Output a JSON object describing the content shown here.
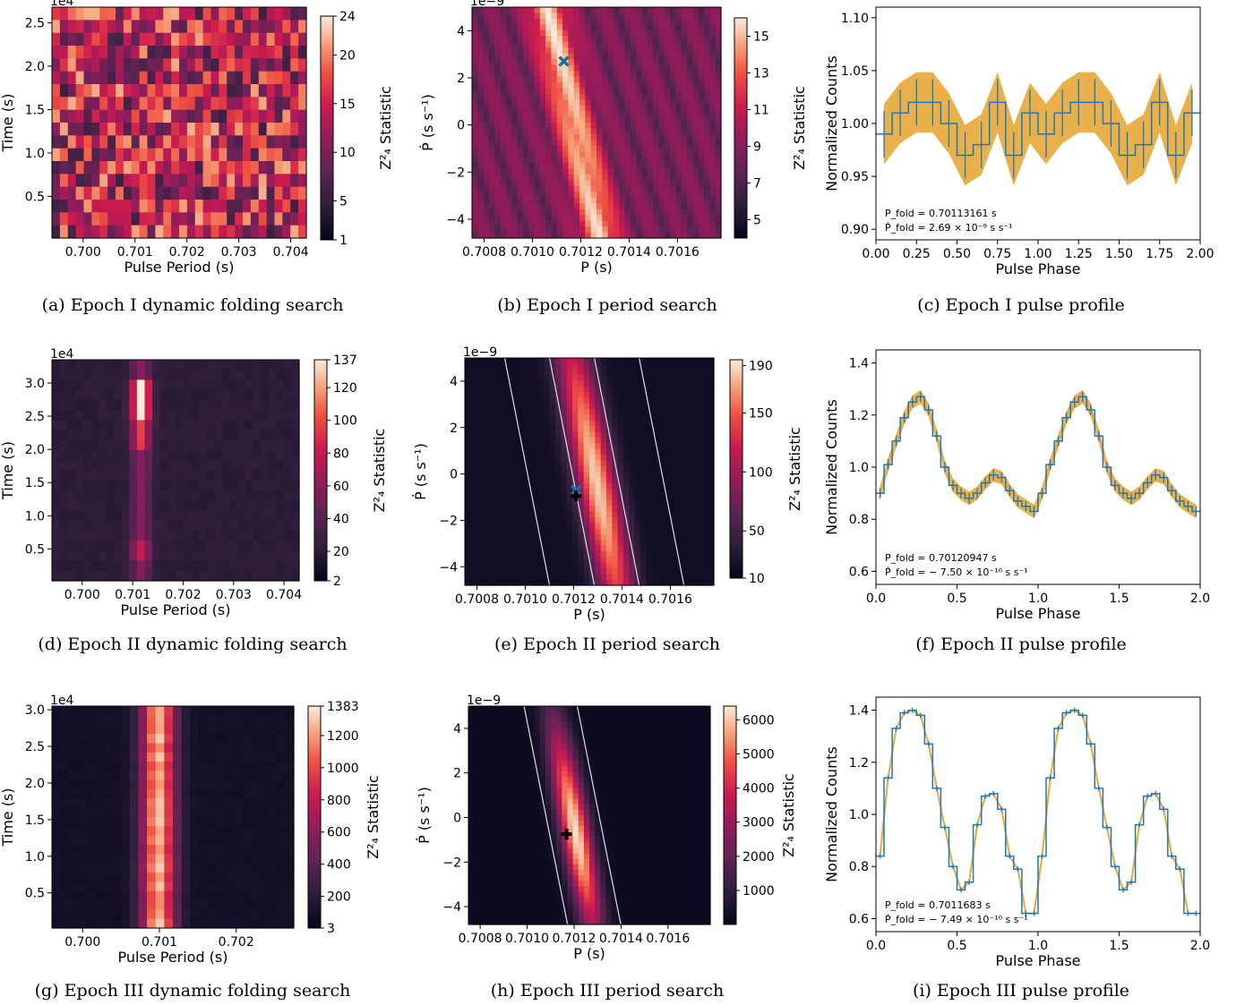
{
  "colors": {
    "profile_line": "#1f77b4",
    "profile_band": "#e8a937",
    "best_marker": "#1f6fa0",
    "cross_marker": "#000000"
  },
  "captions": [
    "(a) Epoch I dynamic folding search",
    "(b) Epoch I period search",
    "(c) Epoch I pulse profile",
    "(d) Epoch II dynamic folding search",
    "(e) Epoch II period search",
    "(f) Epoch II pulse profile",
    "(g) Epoch III dynamic folding search",
    "(h) Epoch III period search",
    "(i) Epoch III pulse profile"
  ],
  "chart_data": [
    {
      "id": "a",
      "type": "heatmap",
      "xlabel": "Pulse Period (s)",
      "ylabel": "Time (s)",
      "yscale_label": "1e4",
      "xlim": [
        0.6994,
        0.7043
      ],
      "ylim": [
        0.02,
        2.68
      ],
      "xticks": [
        "0.700",
        "0.701",
        "0.702",
        "0.703",
        "0.704"
      ],
      "yticks": [
        "0.5",
        "1.0",
        "1.5",
        "2.0",
        "2.5"
      ],
      "colorbar": {
        "label": "Z²₄ Statistic",
        "min": 1,
        "max": 24,
        "ticks": [
          "1",
          "5",
          "10",
          "15",
          "20",
          "24"
        ]
      }
    },
    {
      "id": "b",
      "type": "heatmap",
      "xlabel": "P (s)",
      "ylabel": "Ṗ (s s⁻¹)",
      "yscale_label": "1e−9",
      "xlim": [
        0.70075,
        0.70178
      ],
      "ylim": [
        -4.8,
        5
      ],
      "xticks": [
        "0.7008",
        "0.7010",
        "0.7012",
        "0.7014",
        "0.7016"
      ],
      "yticks": [
        "−4",
        "−2",
        "0",
        "2",
        "4"
      ],
      "colorbar": {
        "label": "Z²₄ Statistic",
        "min": 4,
        "max": 16,
        "ticks": [
          "5",
          "7",
          "9",
          "11",
          "13",
          "15"
        ]
      },
      "markers": [
        {
          "kind": "x",
          "P": 0.70113,
          "Pdot": 2.7
        }
      ]
    },
    {
      "id": "c",
      "type": "line",
      "xlabel": "Pulse Phase",
      "ylabel": "Normalized Counts",
      "xlim": [
        0,
        2
      ],
      "ylim": [
        0.89,
        1.11
      ],
      "xticks": [
        "0.00",
        "0.25",
        "0.50",
        "0.75",
        "1.00",
        "1.25",
        "1.50",
        "1.75",
        "2.00"
      ],
      "yticks": [
        "0.90",
        "0.95",
        "1.00",
        "1.05",
        "1.10"
      ],
      "annotation": [
        "P_fold = 0.70113161 s",
        "Ṗ_fold = 2.69 × 10⁻⁹ s s⁻¹"
      ],
      "phase": [
        0.05,
        0.15,
        0.25,
        0.35,
        0.45,
        0.55,
        0.65,
        0.75,
        0.85,
        0.95
      ],
      "values": [
        0.99,
        1.01,
        1.02,
        1.02,
        1.0,
        0.97,
        0.98,
        1.02,
        0.97,
        1.01
      ],
      "errors": [
        0.022,
        0.022,
        0.022,
        0.022,
        0.022,
        0.022,
        0.022,
        0.022,
        0.022,
        0.022
      ]
    },
    {
      "id": "d",
      "type": "heatmap",
      "xlabel": "Pulse Period (s)",
      "ylabel": "Time (s)",
      "yscale_label": "1e4",
      "xlim": [
        0.6994,
        0.7043
      ],
      "ylim": [
        0.02,
        3.35
      ],
      "xticks": [
        "0.700",
        "0.701",
        "0.702",
        "0.703",
        "0.704"
      ],
      "yticks": [
        "0.5",
        "1.0",
        "1.5",
        "2.0",
        "2.5",
        "3.0"
      ],
      "colorbar": {
        "label": "Z²₄ Statistic",
        "min": 2,
        "max": 137,
        "ticks": [
          "2",
          "20",
          "40",
          "60",
          "80",
          "100",
          "120",
          "137"
        ]
      }
    },
    {
      "id": "e",
      "type": "heatmap",
      "xlabel": "P (s)",
      "ylabel": "Ṗ (s s⁻¹)",
      "yscale_label": "1e−9",
      "xlim": [
        0.70075,
        0.70178
      ],
      "ylim": [
        -4.8,
        5
      ],
      "xticks": [
        "0.7008",
        "0.7010",
        "0.7012",
        "0.7014",
        "0.7016"
      ],
      "yticks": [
        "−4",
        "−2",
        "0",
        "2",
        "4"
      ],
      "colorbar": {
        "label": "Z²₄ Statistic",
        "min": 10,
        "max": 195,
        "ticks": [
          "10",
          "50",
          "100",
          "150",
          "190"
        ]
      },
      "markers": [
        {
          "kind": "x",
          "P": 0.70121,
          "Pdot": -0.7
        },
        {
          "kind": "plus",
          "P": 0.70121,
          "Pdot": -0.95
        }
      ]
    },
    {
      "id": "f",
      "type": "line",
      "xlabel": "Pulse Phase",
      "ylabel": "Normalized Counts",
      "xlim": [
        0,
        2
      ],
      "ylim": [
        0.55,
        1.45
      ],
      "xticks": [
        "0.0",
        "0.5",
        "1.0",
        "1.5",
        "2.0"
      ],
      "yticks": [
        "0.6",
        "0.8",
        "1.0",
        "1.2",
        "1.4"
      ],
      "annotation": [
        "P_fold = 0.70120947 s",
        "Ṗ_fold = − 7.50 × 10⁻¹⁰ s s⁻¹"
      ],
      "phase": [
        0.025,
        0.075,
        0.125,
        0.175,
        0.225,
        0.275,
        0.325,
        0.375,
        0.425,
        0.475,
        0.525,
        0.575,
        0.625,
        0.675,
        0.725,
        0.775,
        0.825,
        0.875,
        0.925,
        0.975
      ],
      "values": [
        0.9,
        1.01,
        1.1,
        1.19,
        1.25,
        1.27,
        1.22,
        1.12,
        1.0,
        0.93,
        0.9,
        0.88,
        0.9,
        0.94,
        0.97,
        0.96,
        0.91,
        0.87,
        0.85,
        0.83
      ],
      "errors": [
        0.02,
        0.02,
        0.02,
        0.02,
        0.02,
        0.02,
        0.02,
        0.02,
        0.02,
        0.02,
        0.02,
        0.02,
        0.02,
        0.02,
        0.02,
        0.02,
        0.02,
        0.02,
        0.02,
        0.02
      ]
    },
    {
      "id": "g",
      "type": "heatmap",
      "xlabel": "Pulse Period (s)",
      "ylabel": "Time (s)",
      "yscale_label": "1e4",
      "xlim": [
        0.6996,
        0.70275
      ],
      "ylim": [
        0.02,
        3.05
      ],
      "xticks": [
        "0.700",
        "0.701",
        "0.702"
      ],
      "yticks": [
        "0.5",
        "1.0",
        "1.5",
        "2.0",
        "2.5",
        "3.0"
      ],
      "colorbar": {
        "label": "Z²₄ Statistic",
        "min": 3,
        "max": 1383,
        "ticks": [
          "3",
          "200",
          "400",
          "600",
          "800",
          "1000",
          "1200",
          "1383"
        ]
      }
    },
    {
      "id": "h",
      "type": "heatmap",
      "xlabel": "P (s)",
      "ylabel": "Ṗ (s s⁻¹)",
      "yscale_label": "1e−9",
      "xlim": [
        0.70075,
        0.70178
      ],
      "ylim": [
        -4.8,
        5
      ],
      "xticks": [
        "0.7008",
        "0.7010",
        "0.7012",
        "0.7014",
        "0.7016"
      ],
      "yticks": [
        "−4",
        "−2",
        "0",
        "2",
        "4"
      ],
      "colorbar": {
        "label": "Z²₄ Statistic",
        "min": 3,
        "max": 6400,
        "ticks": [
          "1000",
          "2000",
          "3000",
          "4000",
          "5000",
          "6000"
        ]
      },
      "markers": [
        {
          "kind": "plus",
          "P": 0.701168,
          "Pdot": -0.75
        }
      ]
    },
    {
      "id": "i",
      "type": "line",
      "xlabel": "Pulse Phase",
      "ylabel": "Normalized Counts",
      "xlim": [
        0,
        2
      ],
      "ylim": [
        0.55,
        1.45
      ],
      "xticks": [
        "0.0",
        "0.5",
        "1.0",
        "1.5",
        "2.0"
      ],
      "yticks": [
        "0.6",
        "0.8",
        "1.0",
        "1.2",
        "1.4"
      ],
      "annotation": [
        "P_fold = 0.7011683 s",
        "Ṗ_fold = − 7.49 × 10⁻¹⁰ s s⁻¹"
      ],
      "phase": [
        0.025,
        0.075,
        0.125,
        0.175,
        0.225,
        0.275,
        0.325,
        0.375,
        0.425,
        0.475,
        0.525,
        0.575,
        0.625,
        0.675,
        0.725,
        0.775,
        0.825,
        0.875,
        0.925,
        0.975
      ],
      "values": [
        0.84,
        1.14,
        1.33,
        1.39,
        1.4,
        1.38,
        1.27,
        1.1,
        0.95,
        0.8,
        0.71,
        0.74,
        0.96,
        1.07,
        1.08,
        1.02,
        0.84,
        0.79,
        0.62,
        0.62
      ],
      "errors": [
        0.01,
        0.01,
        0.01,
        0.01,
        0.01,
        0.01,
        0.01,
        0.01,
        0.01,
        0.01,
        0.01,
        0.01,
        0.01,
        0.01,
        0.01,
        0.01,
        0.01,
        0.01,
        0.01,
        0.01
      ]
    }
  ]
}
